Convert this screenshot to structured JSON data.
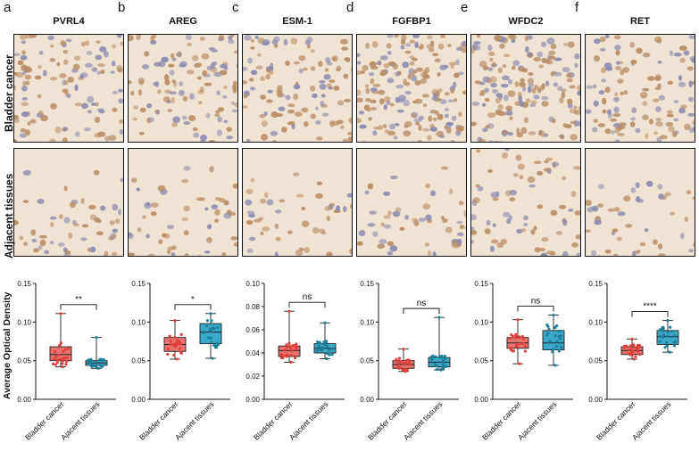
{
  "panels": [
    {
      "letter": "a",
      "gene": "PVRL4"
    },
    {
      "letter": "b",
      "gene": "AREG"
    },
    {
      "letter": "c",
      "gene": "ESM-1"
    },
    {
      "letter": "d",
      "gene": "FGFBP1"
    },
    {
      "letter": "e",
      "gene": "WFDC2"
    },
    {
      "letter": "f",
      "gene": "RET"
    }
  ],
  "row_labels": {
    "cancer": "Bladder cancer",
    "adjacent": "Adjacent tissues"
  },
  "y_axis_label": "Average Optical Density",
  "colors": {
    "cancer_fill": "#e8736e",
    "cancer_point": "#e0403a",
    "adjacent_fill": "#3aa8c9",
    "adjacent_point": "#1e7f99",
    "stain_bg": "#efe3d4",
    "stain_cell": "#b98d63"
  },
  "chart_data": [
    {
      "type": "box",
      "gene": "PVRL4",
      "categories": [
        "Bladder cancer",
        "Ajacent tissues"
      ],
      "ylim": [
        0,
        0.15
      ],
      "yticks": [
        "0.00",
        "0.05",
        "0.10",
        "0.15"
      ],
      "significance": "**",
      "boxes": [
        {
          "min": 0.042,
          "q1": 0.05,
          "median": 0.058,
          "q3": 0.068,
          "max": 0.111
        },
        {
          "min": 0.04,
          "q1": 0.044,
          "median": 0.047,
          "q3": 0.05,
          "max": 0.08
        }
      ]
    },
    {
      "type": "box",
      "gene": "AREG",
      "categories": [
        "Bladder cancer",
        "Ajacent tissues"
      ],
      "ylim": [
        0,
        0.15
      ],
      "yticks": [
        "0.00",
        "0.05",
        "0.10",
        "0.15"
      ],
      "significance": "*",
      "boxes": [
        {
          "min": 0.052,
          "q1": 0.062,
          "median": 0.071,
          "q3": 0.08,
          "max": 0.102
        },
        {
          "min": 0.053,
          "q1": 0.072,
          "median": 0.087,
          "q3": 0.098,
          "max": 0.111
        }
      ]
    },
    {
      "type": "box",
      "gene": "ESM-1",
      "categories": [
        "Bladder cancer",
        "Ajacent tissues"
      ],
      "ylim": [
        0,
        0.1
      ],
      "yticks": [
        "0.00",
        "0.02",
        "0.04",
        "0.06",
        "0.08",
        "0.10"
      ],
      "significance": "ns",
      "boxes": [
        {
          "min": 0.032,
          "q1": 0.037,
          "median": 0.042,
          "q3": 0.046,
          "max": 0.076
        },
        {
          "min": 0.035,
          "q1": 0.04,
          "median": 0.044,
          "q3": 0.048,
          "max": 0.066
        }
      ]
    },
    {
      "type": "box",
      "gene": "FGFBP1",
      "categories": [
        "Bladder cancer",
        "Ajacent tissues"
      ],
      "ylim": [
        0,
        0.15
      ],
      "yticks": [
        "0.00",
        "0.05",
        "0.10",
        "0.15"
      ],
      "significance": "ns",
      "boxes": [
        {
          "min": 0.036,
          "q1": 0.04,
          "median": 0.045,
          "q3": 0.05,
          "max": 0.065
        },
        {
          "min": 0.038,
          "q1": 0.042,
          "median": 0.048,
          "q3": 0.054,
          "max": 0.106
        }
      ]
    },
    {
      "type": "box",
      "gene": "WFDC2",
      "categories": [
        "Bladder cancer",
        "Ajacent tissues"
      ],
      "ylim": [
        0,
        0.15
      ],
      "yticks": [
        "0.00",
        "0.05",
        "0.10",
        "0.15"
      ],
      "significance": "ns",
      "boxes": [
        {
          "min": 0.046,
          "q1": 0.066,
          "median": 0.073,
          "q3": 0.08,
          "max": 0.103
        },
        {
          "min": 0.044,
          "q1": 0.064,
          "median": 0.073,
          "q3": 0.089,
          "max": 0.109
        }
      ]
    },
    {
      "type": "box",
      "gene": "RET",
      "categories": [
        "Bladder cancer",
        "Ajacent tissues"
      ],
      "ylim": [
        0,
        0.15
      ],
      "yticks": [
        "0.00",
        "0.05",
        "0.10",
        "0.15"
      ],
      "significance": "****",
      "boxes": [
        {
          "min": 0.052,
          "q1": 0.058,
          "median": 0.063,
          "q3": 0.068,
          "max": 0.078
        },
        {
          "min": 0.061,
          "q1": 0.071,
          "median": 0.081,
          "q3": 0.089,
          "max": 0.102
        }
      ]
    }
  ]
}
